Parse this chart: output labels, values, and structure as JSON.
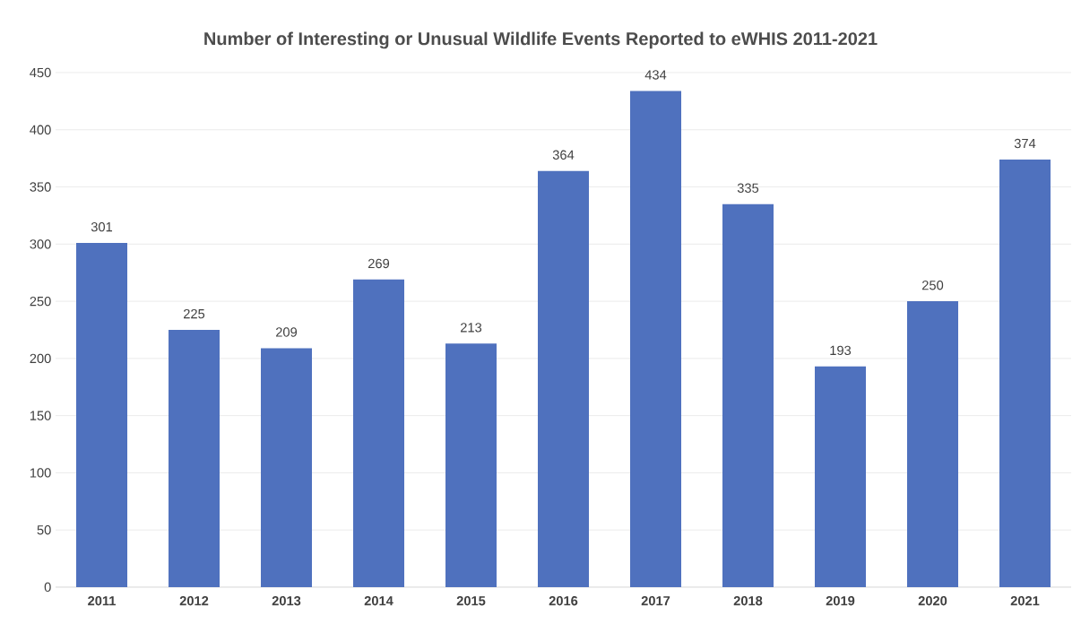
{
  "chart_data": {
    "type": "bar",
    "title": "Number of Interesting or Unusual Wildlife Events Reported to eWHIS 2011-2021",
    "categories": [
      "2011",
      "2012",
      "2013",
      "2014",
      "2015",
      "2016",
      "2017",
      "2018",
      "2019",
      "2020",
      "2021"
    ],
    "values": [
      301,
      225,
      209,
      269,
      213,
      364,
      434,
      335,
      193,
      250,
      374
    ],
    "color": "#4f71be",
    "ylim": [
      0,
      450
    ],
    "yticks": [
      0,
      50,
      100,
      150,
      200,
      250,
      300,
      350,
      400,
      450
    ],
    "grid": "y",
    "data_labels": true
  }
}
